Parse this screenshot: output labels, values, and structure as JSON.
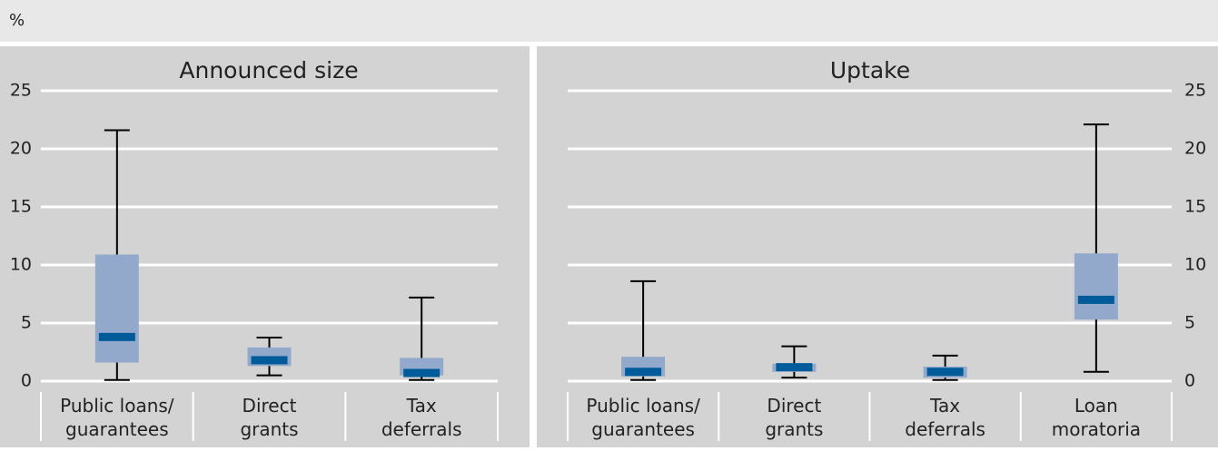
{
  "unit": "%",
  "chart_data": [
    {
      "type": "box",
      "title": "Announced size",
      "axis_side": "left",
      "grid": true,
      "box_color": "#93a9cc",
      "median_color": "#005b9a",
      "whisker_color": "#000000",
      "categories": [
        [
          "Public loans/",
          "guarantees"
        ],
        [
          "Direct",
          "grants"
        ],
        [
          "Tax",
          "deferrals"
        ]
      ],
      "values": [
        {
          "min": 0.1,
          "q1": 1.6,
          "median": 3.8,
          "q3": 10.9,
          "max": 21.6
        },
        {
          "min": 0.5,
          "q1": 1.3,
          "median": 1.8,
          "q3": 2.9,
          "max": 3.75
        },
        {
          "min": 0.1,
          "q1": 0.5,
          "median": 0.7,
          "q3": 2.0,
          "max": 7.2
        }
      ],
      "ylim": [
        0,
        25
      ],
      "yticks": [
        0,
        5,
        10,
        15,
        20,
        25
      ]
    },
    {
      "type": "box",
      "title": "Uptake",
      "axis_side": "right",
      "grid": true,
      "box_color": "#93a9cc",
      "median_color": "#005b9a",
      "whisker_color": "#000000",
      "categories": [
        [
          "Public loans/",
          "guarantees"
        ],
        [
          "Direct",
          "grants"
        ],
        [
          "Tax",
          "deferrals"
        ],
        [
          "Loan",
          "moratoria"
        ]
      ],
      "values": [
        {
          "min": 0.1,
          "q1": 0.4,
          "median": 0.8,
          "q3": 2.1,
          "max": 8.6
        },
        {
          "min": 0.3,
          "q1": 0.8,
          "median": 1.2,
          "q3": 1.5,
          "max": 3.0
        },
        {
          "min": 0.1,
          "q1": 0.3,
          "median": 0.8,
          "q3": 1.25,
          "max": 2.2
        },
        {
          "min": 0.8,
          "q1": 5.3,
          "median": 7.0,
          "q3": 11.0,
          "max": 22.1
        }
      ],
      "ylim": [
        0,
        25
      ],
      "yticks": [
        0,
        5,
        10,
        15,
        20,
        25
      ]
    }
  ]
}
